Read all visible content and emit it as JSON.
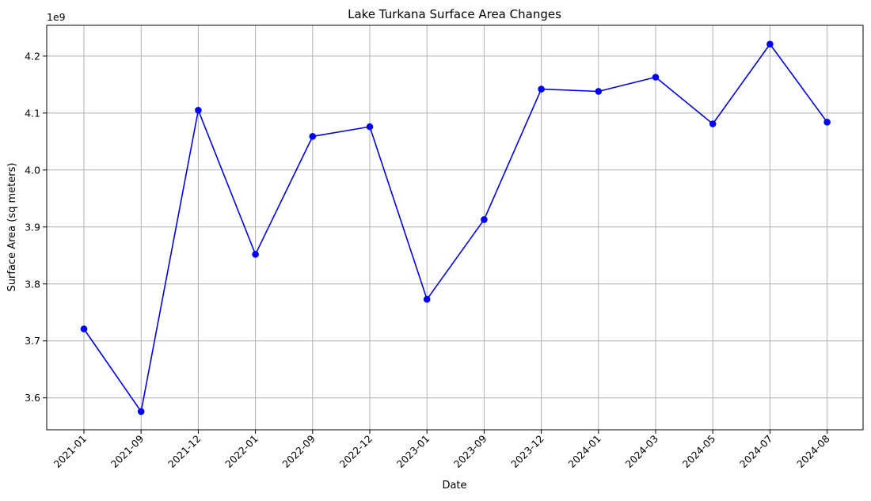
{
  "chart_data": {
    "type": "line",
    "title": "Lake Turkana Surface Area Changes",
    "xlabel": "Date",
    "ylabel": "Surface Area (sq meters)",
    "y_offset_label": "1e9",
    "categories": [
      "2021-01",
      "2021-09",
      "2021-12",
      "2022-01",
      "2022-09",
      "2022-12",
      "2023-01",
      "2023-09",
      "2023-12",
      "2024-01",
      "2024-03",
      "2024-05",
      "2024-07",
      "2024-08"
    ],
    "series": [
      {
        "values": [
          3.721,
          3.576,
          4.105,
          3.852,
          4.059,
          4.076,
          3.773,
          3.913,
          4.142,
          4.138,
          4.163,
          4.081,
          4.221,
          4.084
        ],
        "color": "#0000ff",
        "marker": "circle"
      }
    ],
    "yticks": [
      "3.6",
      "3.7",
      "3.8",
      "3.9",
      "4.0",
      "4.1",
      "4.2"
    ],
    "ylim": [
      3.544,
      4.254
    ],
    "grid": true,
    "legend": "none",
    "colors": {
      "line": "#0000ff",
      "grid": "#b0b0b0",
      "axes": "#000000"
    }
  }
}
